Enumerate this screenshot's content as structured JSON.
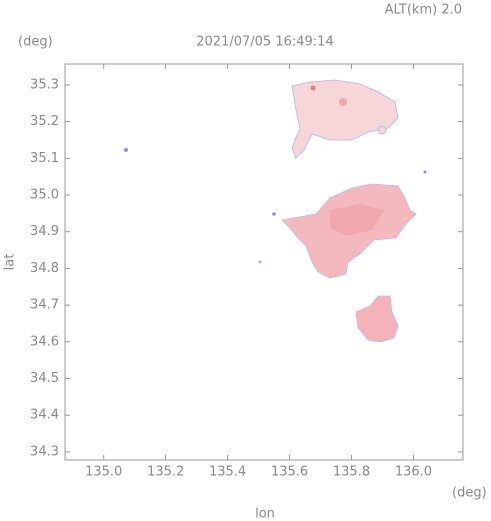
{
  "chart_data": {
    "type": "map",
    "title": "2021/07/05 16:49:14",
    "subtitle": "ALT(km) 2.0",
    "x_label": "lon",
    "y_label": "lat",
    "x_unit": "(deg)",
    "y_unit": "(deg)",
    "xlim": [
      134.875,
      136.16
    ],
    "ylim": [
      34.278,
      35.357
    ],
    "xticks": [
      {
        "value": 135,
        "label": "135.0"
      },
      135.2,
      135.4,
      135.6,
      135.8,
      {
        "value": 136,
        "label": "136.0"
      }
    ],
    "yticks": [
      34.3,
      34.4,
      34.5,
      34.6,
      34.7,
      34.8,
      34.9,
      {
        "value": 35,
        "label": "35.0"
      },
      35.1,
      35.2,
      35.3
    ]
  }
}
